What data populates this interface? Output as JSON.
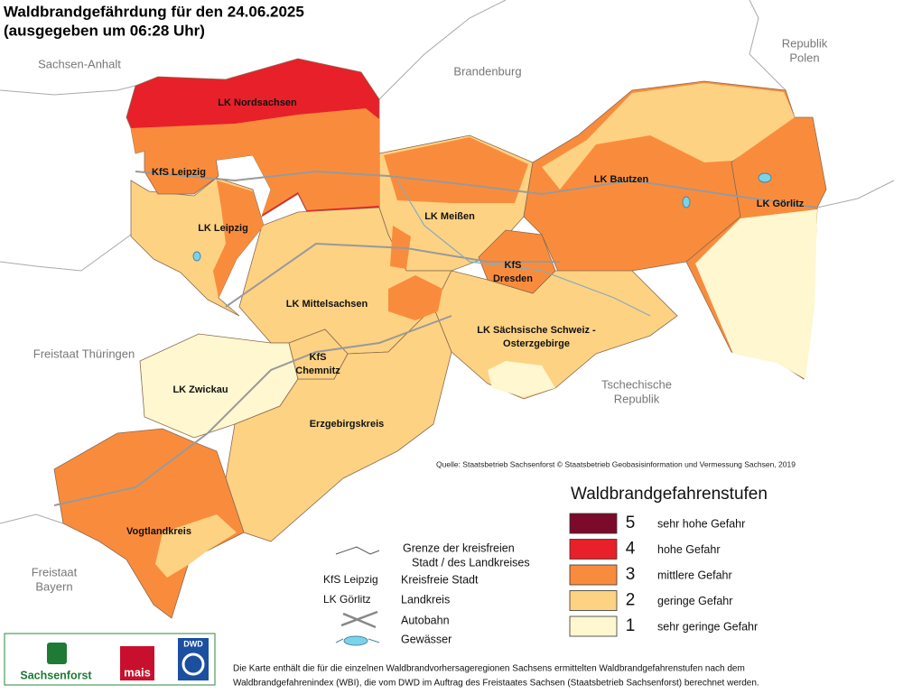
{
  "title": [
    "Waldbrandgefährdung  für den  24.06.2025",
    "(ausgegeben um 06:28 Uhr)"
  ],
  "neighbors": [
    {
      "lines": [
        "Sachsen-Anhalt"
      ]
    },
    {
      "lines": [
        "Brandenburg"
      ]
    },
    {
      "lines": [
        "Republik",
        "Polen"
      ]
    },
    {
      "lines": [
        "Freistaat Thüringen"
      ]
    },
    {
      "lines": [
        "Tschechische",
        "Republik"
      ]
    },
    {
      "lines": [
        "Freistaat",
        "Bayern"
      ]
    }
  ],
  "regions": [
    {
      "lines": [
        "LK Nordsachsen"
      ],
      "level": 4
    },
    {
      "lines": [
        "LK Leipzig"
      ],
      "level": 2
    },
    {
      "lines": [
        "KfS Leipzig"
      ],
      "level": 3
    },
    {
      "lines": [
        "LK Meißen"
      ],
      "level": 2
    },
    {
      "lines": [
        "LK Bautzen"
      ],
      "level": 3
    },
    {
      "lines": [
        "LK Görlitz"
      ],
      "level": 3
    },
    {
      "lines": [
        "LK Mittelsachsen"
      ],
      "level": 2
    },
    {
      "lines": [
        "LK Sächsische Schweiz -",
        "Osterzgebirge"
      ],
      "level": 2
    },
    {
      "lines": [
        "KfS",
        "Dresden"
      ],
      "level": 3
    },
    {
      "lines": [
        "LK Zwickau"
      ],
      "level": 1
    },
    {
      "lines": [
        "Erzgebirgskreis"
      ],
      "level": 2
    },
    {
      "lines": [
        "KfS",
        "Chemnitz"
      ],
      "level": 2
    },
    {
      "lines": [
        "Vogtlandkreis"
      ],
      "level": 3
    }
  ],
  "source": "Quelle: Staatsbetrieb Sachsenforst  © Staatsbetrieb Geobasisinformation und Vermessung Sachsen, 2019",
  "legend": {
    "title": "Waldbrandgefahrenstufen",
    "items": [
      {
        "level": 5,
        "label": "sehr hohe Gefahr",
        "color": "#7c0a2a"
      },
      {
        "level": 4,
        "label": "hohe Gefahr",
        "color": "#e8202a"
      },
      {
        "level": 3,
        "label": "mittlere Gefahr",
        "color": "#f98c3c"
      },
      {
        "level": 2,
        "label": "geringe Gefahr",
        "color": "#fdd283"
      },
      {
        "level": 1,
        "label": "sehr geringe Gefahr",
        "color": "#fef7cf"
      }
    ]
  },
  "key": [
    {
      "lines": [
        "Grenze der kreisfreien",
        "Stadt / des Landkreises"
      ]
    },
    {
      "sample": "KfS Leipzig",
      "lines": [
        "Kreisfreie Stadt"
      ]
    },
    {
      "sample": "LK Görlitz",
      "lines": [
        "Landkreis"
      ]
    },
    {
      "lines": [
        "Autobahn"
      ]
    },
    {
      "lines": [
        "Gewässer"
      ]
    }
  ],
  "logos": [
    "Sachsenforst",
    "mais",
    "DWD"
  ],
  "footnote": [
    "Die Karte enthält die für die einzelnen Waldbrandvorhersageregionen Sachsens ermittelten Waldbrandgefahrenstufen nach dem",
    "Waldbrandgefahrenindex (WBI), die vom DWD im Auftrag des Freistaates Sachsen (Staatsbetrieb Sachsenforst) berechnet werden."
  ]
}
